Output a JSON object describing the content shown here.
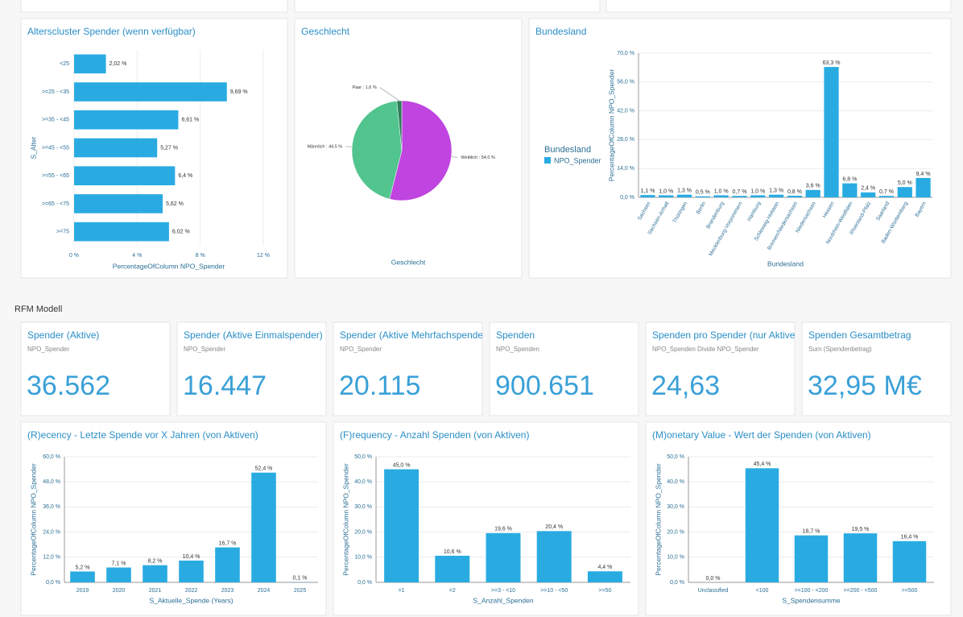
{
  "section_title": "RFM Modell",
  "charts": [
    {
      "type": "hbar",
      "title": "Alterscluster Spender (wenn verfügbar)",
      "color": "#29abe2",
      "categories": [
        "<25",
        ">=25 - <35",
        ">=35 - <45",
        ">=45 - <55",
        ">=55 - <65",
        ">=65 - <75",
        ">=75"
      ],
      "values": [
        2.02,
        9.69,
        6.61,
        5.27,
        6.4,
        5.62,
        6.02
      ],
      "value_labels": [
        "2,02 %",
        "9,69 %",
        "6,61 %",
        "5,27 %",
        "6,4 %",
        "5,62 %",
        "6,02 %"
      ],
      "xlim": [
        0,
        12
      ],
      "xticks": [
        {
          "value": 0,
          "label": "0 %"
        },
        {
          "value": 4,
          "label": "4 %"
        },
        {
          "value": 8,
          "label": "8 %"
        },
        {
          "value": 12,
          "label": "12 %"
        }
      ],
      "x_label": "PercentageOfColumn NPO_Spender",
      "y_label": "S_Alter",
      "grid": true
    },
    {
      "type": "pie",
      "title": "Geschlecht",
      "categories": [
        "Weiblich",
        "Männlich",
        "Paar"
      ],
      "values": [
        54.0,
        44.5,
        1.6
      ],
      "value_labels": [
        "Weiblich : 54,0 %",
        "Männlich : 44,5 %",
        "Paar : 1,6 %"
      ],
      "colors": [
        "#c044e0",
        "#52c58f",
        "#2e7d5b"
      ],
      "x_label": "Geschlecht"
    },
    {
      "type": "bar",
      "title": "Bundesland",
      "legend_title": "Bundesland",
      "categories": [
        "Sachsen",
        "Sachsen-Anhalt",
        "Thüringen",
        "Berlin",
        "Brandenburg",
        "Mecklenburg-Vorpommern",
        "Hamburg",
        "Schleswig-Holstein",
        "Bremen/Niedersachsen",
        "Niedersachsen",
        "Hessen",
        "Nordrhein-Westfalen",
        "Rheinland-Pfalz",
        "Saarland",
        "Baden-Württemberg",
        "Bayern"
      ],
      "series": [
        {
          "name": "NPO_Spender",
          "color": "#29abe2",
          "values": [
            1.1,
            1.0,
            1.3,
            0.5,
            1.0,
            0.7,
            1.0,
            1.3,
            0.8,
            3.6,
            63.3,
            6.8,
            2.4,
            0.7,
            5.0,
            9.4
          ],
          "value_labels": [
            "1,1 %",
            "1,0 %",
            "1,3 %",
            "0,5 %",
            "1,0 %",
            "0,7 %",
            "1,0 %",
            "1,3 %",
            "0,8 %",
            "3,6 %",
            "63,3 %",
            "6,8 %",
            "2,4 %",
            "0,7 %",
            "5,0 %",
            "9,4 %"
          ]
        }
      ],
      "ylim": [
        0,
        70
      ],
      "yticks": [
        {
          "value": 0,
          "label": "0,0 %"
        },
        {
          "value": 14,
          "label": "14,0 %"
        },
        {
          "value": 28,
          "label": "28,0 %"
        },
        {
          "value": 42,
          "label": "42,0 %"
        },
        {
          "value": 56,
          "label": "56,0 %"
        },
        {
          "value": 70,
          "label": "70,0 %"
        }
      ],
      "x_label": "Bundesland",
      "y_label": "PercentageOfColumn NPO_Spender",
      "grid": true
    },
    {
      "type": "bar",
      "title": "(R)ecency - Letzte Spende vor X Jahren (von Aktiven)",
      "color": "#29abe2",
      "categories": [
        "2019",
        "2020",
        "2021",
        "2022",
        "2023",
        "2024",
        "2025"
      ],
      "values": [
        5.2,
        7.1,
        8.2,
        10.4,
        16.7,
        52.4,
        0.1
      ],
      "value_labels": [
        "5,2 %",
        "7,1 %",
        "8,2 %",
        "10,4 %",
        "16,7 %",
        "52,4 %",
        "0,1 %"
      ],
      "ylim": [
        0,
        60
      ],
      "yticks": [
        {
          "value": 0,
          "label": "0,0 %"
        },
        {
          "value": 12,
          "label": "12,0 %"
        },
        {
          "value": 24,
          "label": "24,0 %"
        },
        {
          "value": 36,
          "label": "36,0 %"
        },
        {
          "value": 48,
          "label": "48,0 %"
        },
        {
          "value": 60,
          "label": "60,0 %"
        }
      ],
      "x_label": "S_Aktuelle_Spende (Years)",
      "y_label": "PercentageOfColumn NPO_Spender",
      "grid": true
    },
    {
      "type": "bar",
      "title": "(F)requency - Anzahl Spenden (von Aktiven)",
      "color": "#29abe2",
      "categories": [
        "=1",
        "=2",
        ">=3 - <10",
        ">=10 - <50",
        ">=50"
      ],
      "values": [
        45.0,
        10.6,
        19.6,
        20.4,
        4.4
      ],
      "value_labels": [
        "45,0 %",
        "10,6 %",
        "19,6 %",
        "20,4 %",
        "4,4 %"
      ],
      "ylim": [
        0,
        50
      ],
      "yticks": [
        {
          "value": 0,
          "label": "0,0 %"
        },
        {
          "value": 10,
          "label": "10,0 %"
        },
        {
          "value": 20,
          "label": "20,0 %"
        },
        {
          "value": 30,
          "label": "30,0 %"
        },
        {
          "value": 40,
          "label": "40,0 %"
        },
        {
          "value": 50,
          "label": "50,0 %"
        }
      ],
      "x_label": "S_Anzahl_Spenden",
      "y_label": "PercentageOfColumn NPO_Spender",
      "grid": true
    },
    {
      "type": "bar",
      "title": "(M)onetary Value - Wert der Spenden (von Aktiven)",
      "color": "#29abe2",
      "categories": [
        "Unclassified",
        "<100",
        ">=100 - <200",
        ">=200 - <500",
        ">=500"
      ],
      "values": [
        0.0,
        45.4,
        18.7,
        19.5,
        16.4
      ],
      "value_labels": [
        "0,0 %",
        "45,4 %",
        "18,7 %",
        "19,5 %",
        "16,4 %"
      ],
      "ylim": [
        0,
        50
      ],
      "yticks": [
        {
          "value": 0,
          "label": "0,0 %"
        },
        {
          "value": 10,
          "label": "10,0 %"
        },
        {
          "value": 20,
          "label": "20,0 %"
        },
        {
          "value": 30,
          "label": "30,0 %"
        },
        {
          "value": 40,
          "label": "40,0 %"
        },
        {
          "value": 50,
          "label": "50,0 %"
        }
      ],
      "x_label": "S_Spendensumme",
      "y_label": "PercentageOfColumn NPO_Spender",
      "grid": true
    }
  ],
  "kpis": [
    {
      "title": "Spender (Aktive)",
      "subtitle": "NPO_Spender",
      "value": "36.562"
    },
    {
      "title": "Spender (Aktive Einmalspender)",
      "subtitle": "NPO_Spender",
      "value": "16.447"
    },
    {
      "title": "Spender (Aktive Mehrfachspende",
      "subtitle": "NPO_Spender",
      "value": "20.115"
    },
    {
      "title": "Spenden",
      "subtitle": "NPO_Spenden",
      "value": "900.651"
    },
    {
      "title": "Spenden pro Spender (nur Aktive)",
      "subtitle": "NPO_Spenden Divide NPO_Spender",
      "value": "24,63"
    },
    {
      "title": "Spenden Gesamtbetrag",
      "subtitle": "Sum (Spendenbetrag)",
      "value": "32,95 M€"
    }
  ]
}
